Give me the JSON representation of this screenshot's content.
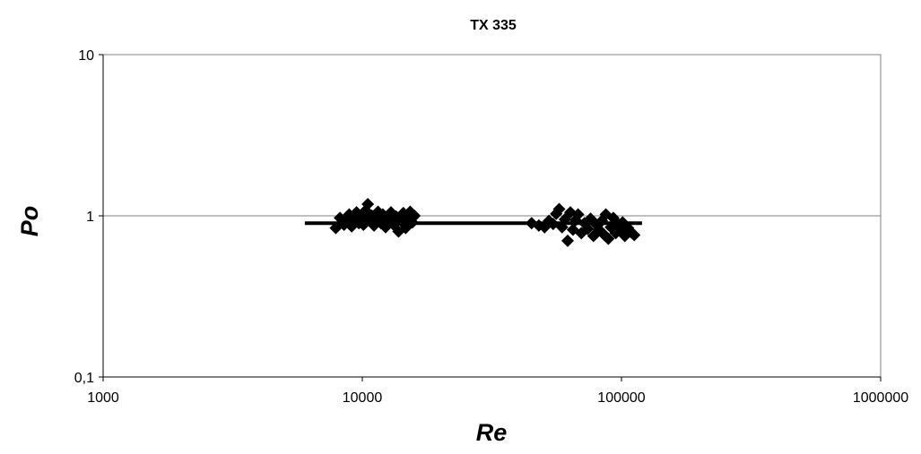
{
  "chart_data": {
    "type": "scatter",
    "title": "TX 335",
    "xlabel": "Re",
    "ylabel": "Po",
    "xscale": "log",
    "yscale": "log",
    "xlim": [
      1000,
      1000000
    ],
    "ylim": [
      0.1,
      10
    ],
    "x_ticks": [
      {
        "value": 1000,
        "label": "1000"
      },
      {
        "value": 10000,
        "label": "10000"
      },
      {
        "value": 100000,
        "label": "100000"
      },
      {
        "value": 1000000,
        "label": "1000000"
      }
    ],
    "y_ticks": [
      {
        "value": 0.1,
        "label": "0,1"
      },
      {
        "value": 1,
        "label": "1"
      },
      {
        "value": 10,
        "label": "10"
      }
    ],
    "grid": {
      "horizontal_at": [
        1
      ],
      "vertical": false
    },
    "legend": "none",
    "marker": "diamond",
    "marker_color": "#000000",
    "points": [
      [
        7900,
        0.84
      ],
      [
        8200,
        0.97
      ],
      [
        8500,
        0.88
      ],
      [
        8700,
        0.93
      ],
      [
        8900,
        1.02
      ],
      [
        9100,
        0.86
      ],
      [
        9300,
        0.95
      ],
      [
        9500,
        1.05
      ],
      [
        9700,
        0.9
      ],
      [
        9900,
        0.98
      ],
      [
        10100,
        0.88
      ],
      [
        10300,
        1.08
      ],
      [
        10500,
        1.18
      ],
      [
        10700,
        0.93
      ],
      [
        10900,
        1.0
      ],
      [
        11100,
        0.87
      ],
      [
        11300,
        0.96
      ],
      [
        11500,
        1.06
      ],
      [
        11800,
        0.9
      ],
      [
        12000,
        1.02
      ],
      [
        12300,
        0.85
      ],
      [
        12600,
        0.96
      ],
      [
        12900,
        1.05
      ],
      [
        13200,
        0.88
      ],
      [
        13500,
        0.99
      ],
      [
        13800,
        0.8
      ],
      [
        14100,
        0.93
      ],
      [
        14400,
        1.04
      ],
      [
        14700,
        0.84
      ],
      [
        15000,
        0.97
      ],
      [
        15300,
        1.06
      ],
      [
        15600,
        0.91
      ],
      [
        15900,
        1.0
      ],
      [
        45000,
        0.9
      ],
      [
        48000,
        0.87
      ],
      [
        50500,
        0.85
      ],
      [
        52500,
        0.93
      ],
      [
        54500,
        0.89
      ],
      [
        56000,
        1.03
      ],
      [
        57500,
        1.1
      ],
      [
        59000,
        0.85
      ],
      [
        60500,
        0.95
      ],
      [
        62000,
        0.7
      ],
      [
        63500,
        1.05
      ],
      [
        65000,
        0.82
      ],
      [
        66500,
        0.94
      ],
      [
        68000,
        1.02
      ],
      [
        70000,
        0.78
      ],
      [
        72000,
        0.9
      ],
      [
        74000,
        0.83
      ],
      [
        76000,
        0.96
      ],
      [
        78000,
        0.75
      ],
      [
        80000,
        0.88
      ],
      [
        82000,
        0.82
      ],
      [
        84000,
        0.93
      ],
      [
        86000,
        0.76
      ],
      [
        87000,
        1.02
      ],
      [
        89000,
        0.72
      ],
      [
        91000,
        0.85
      ],
      [
        93000,
        0.97
      ],
      [
        95000,
        0.78
      ],
      [
        97000,
        0.89
      ],
      [
        99000,
        0.82
      ],
      [
        101000,
        0.91
      ],
      [
        103000,
        0.75
      ],
      [
        106000,
        0.84
      ],
      [
        109000,
        0.79
      ],
      [
        112000,
        0.76
      ]
    ],
    "fit_line": {
      "x": [
        6000,
        120000
      ],
      "y": [
        0.9,
        0.9
      ]
    }
  }
}
